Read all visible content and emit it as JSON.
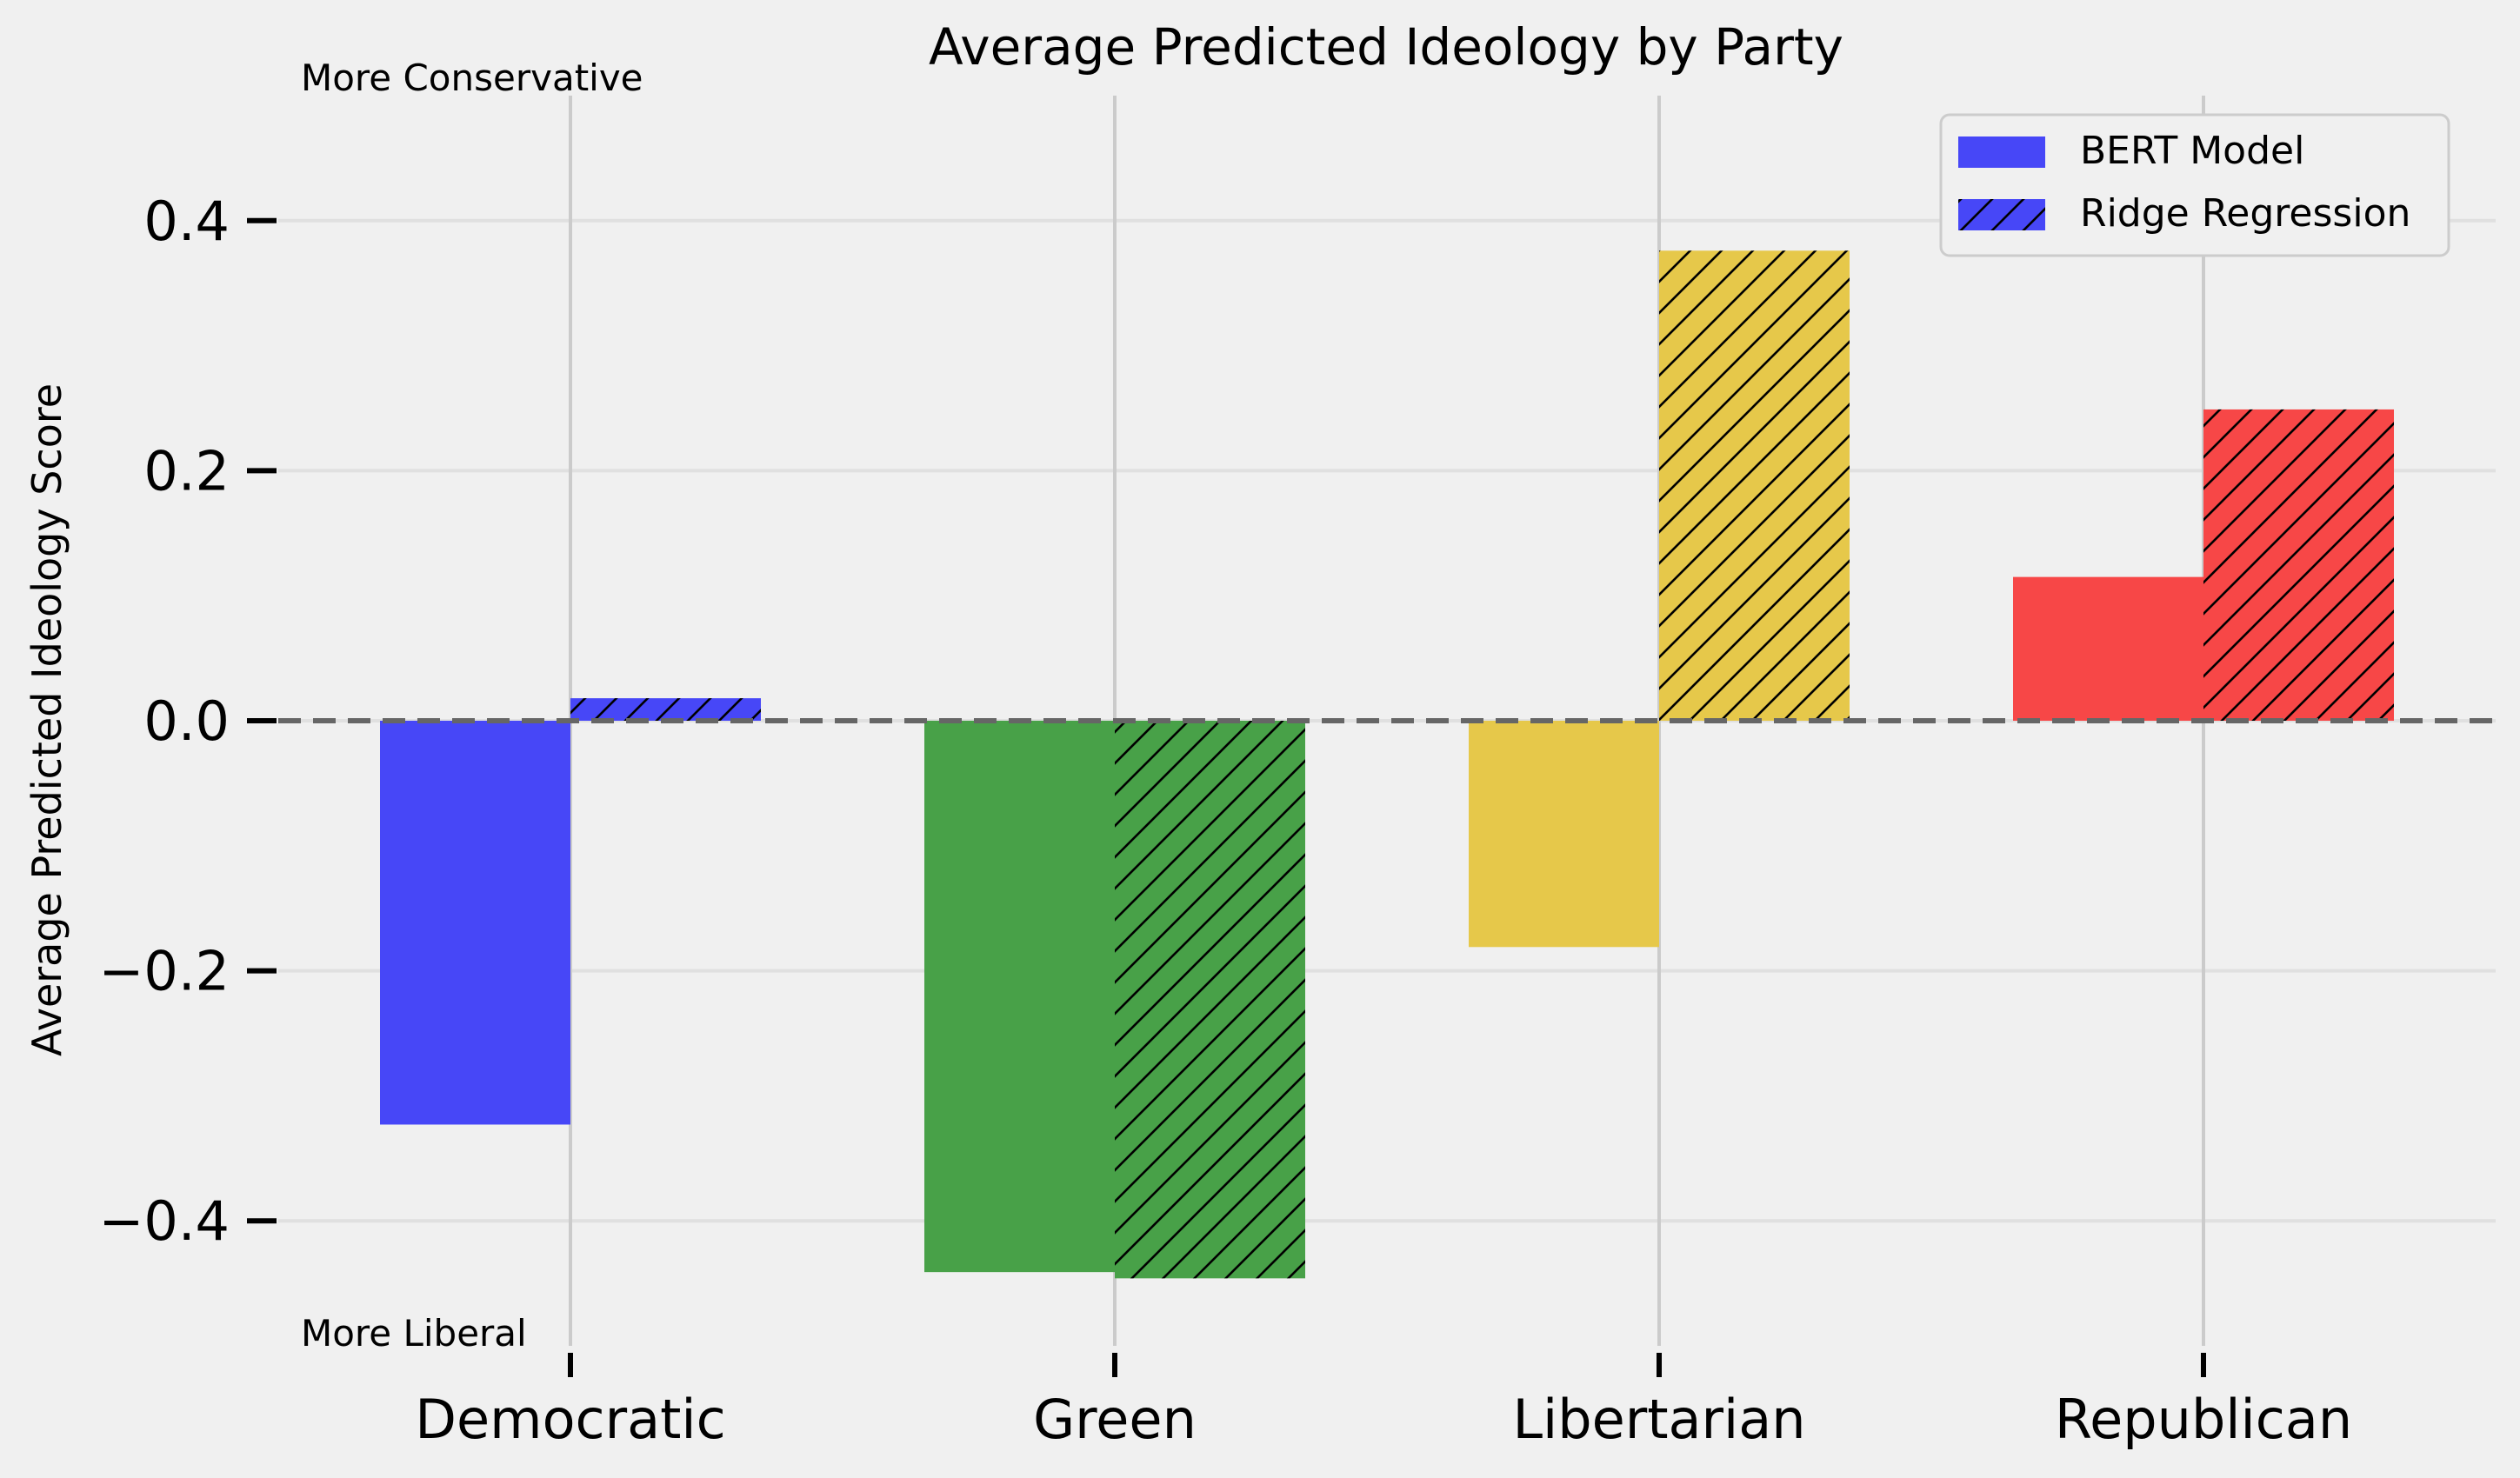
{
  "chart_data": {
    "type": "bar",
    "title": "Average Predicted Ideology by Party",
    "ylabel": "Average Predicted Ideology Score",
    "xlabel": "",
    "categories": [
      "Democratic",
      "Green",
      "Libertarian",
      "Republican"
    ],
    "series": [
      {
        "name": "BERT Model",
        "hatch": false,
        "values": [
          -0.323,
          -0.441,
          -0.181,
          0.115
        ]
      },
      {
        "name": "Ridge Regression",
        "hatch": true,
        "values": [
          0.018,
          -0.446,
          0.376,
          0.249
        ]
      }
    ],
    "category_colors": [
      "#4747f7",
      "#48a148",
      "#e6c84a",
      "#f74747"
    ],
    "legend_color": "#4747f7",
    "ylim": [
      -0.5,
      0.5
    ],
    "yticks": [
      -0.4,
      -0.2,
      0.0,
      0.2,
      0.4
    ],
    "ytick_labels": [
      "−0.4",
      "−0.2",
      "0.0",
      "0.2",
      "0.4"
    ],
    "grid": true,
    "reference_line": 0,
    "legend_position": "top-right",
    "annotations": {
      "top": "More Conservative",
      "bottom": "More Liberal"
    }
  }
}
